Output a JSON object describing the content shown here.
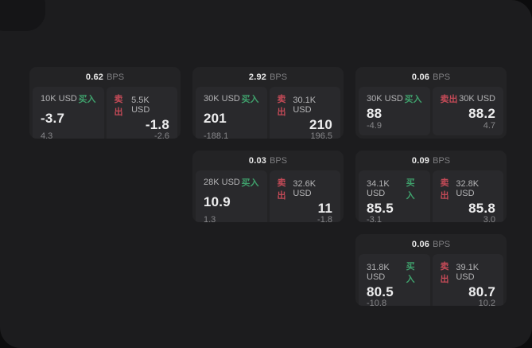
{
  "labels": {
    "bps_unit": "BPS",
    "buy": "买入",
    "sell": "卖出"
  },
  "colors": {
    "buy_green": "#3fa06c",
    "sell_red": "#c44a57",
    "panel_bg": "#1c1c1e",
    "card_bg": "#232325",
    "tile_bg": "#29292c"
  },
  "cards": [
    {
      "bps": "0.62",
      "buy": {
        "amount": "10K USD",
        "price": "-3.7",
        "delta": "4.3"
      },
      "sell": {
        "amount": "5.5K USD",
        "price": "-1.8",
        "delta": "-2.6"
      }
    },
    {
      "bps": "2.92",
      "buy": {
        "amount": "30K USD",
        "price": "201",
        "delta": "-188.1"
      },
      "sell": {
        "amount": "30.1K USD",
        "price": "210",
        "delta": "196.5"
      }
    },
    {
      "bps": "0.06",
      "buy": {
        "amount": "30K USD",
        "price": "88",
        "delta": "-4.9"
      },
      "sell": {
        "amount": "30K USD",
        "price": "88.2",
        "delta": "4.7"
      }
    },
    {
      "bps": "0.03",
      "buy": {
        "amount": "28K USD",
        "price": "10.9",
        "delta": "1.3"
      },
      "sell": {
        "amount": "32.6K USD",
        "price": "11",
        "delta": "-1.8"
      }
    },
    {
      "bps": "0.09",
      "buy": {
        "amount": "34.1K USD",
        "price": "85.5",
        "delta": "-3.1"
      },
      "sell": {
        "amount": "32.8K USD",
        "price": "85.8",
        "delta": "3.0"
      }
    },
    {
      "bps": "0.06",
      "buy": {
        "amount": "31.8K USD",
        "price": "80.5",
        "delta": "-10.8"
      },
      "sell": {
        "amount": "39.1K USD",
        "price": "80.7",
        "delta": "10.2"
      }
    }
  ]
}
